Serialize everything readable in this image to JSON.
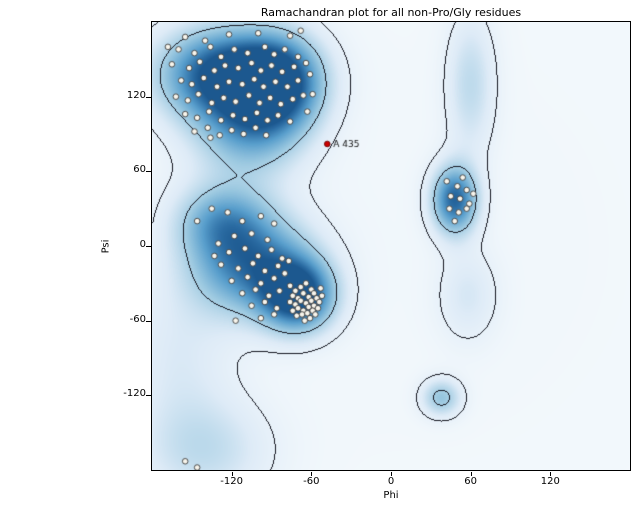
{
  "chart_data": {
    "type": "scatter",
    "title": "Ramachandran plot for all non-Pro/Gly residues",
    "xlabel": "Phi",
    "ylabel": "Psi",
    "xlim": [
      -180,
      180
    ],
    "ylim": [
      -180,
      180
    ],
    "grid": false,
    "legend": "none",
    "point_style": {
      "fill": "#f8f5ec",
      "stroke": "#3c3c3c",
      "radius": 2.8
    },
    "annotated_point": {
      "label": "A 435",
      "phi": -48,
      "psi": 82,
      "fill": "#cc0000",
      "stroke": "#6d0000"
    },
    "contour_levels": [
      0.11,
      0.4
    ],
    "contour_color": [
      22,
      24,
      34
    ],
    "colormap": [
      [
        0.0,
        244,
        249,
        252
      ],
      [
        0.2,
        222,
        235,
        247
      ],
      [
        0.45,
        158,
        202,
        225
      ],
      [
        0.7,
        88,
        158,
        204
      ],
      [
        0.9,
        43,
        108,
        163
      ],
      [
        1.0,
        28,
        88,
        143
      ]
    ],
    "density_blobs": [
      [
        -128,
        138,
        33,
        26,
        1.0
      ],
      [
        -85,
        132,
        24,
        26,
        0.95
      ],
      [
        -105,
        95,
        28,
        26,
        0.45
      ],
      [
        -118,
        58,
        33,
        38,
        0.12
      ],
      [
        -70,
        -40,
        19,
        20,
        1.0
      ],
      [
        -105,
        -15,
        32,
        28,
        0.8
      ],
      [
        -128,
        20,
        24,
        20,
        0.45
      ],
      [
        48,
        37,
        12,
        19,
        0.9
      ],
      [
        60,
        130,
        13,
        40,
        0.3
      ],
      [
        58,
        -40,
        16,
        26,
        0.2
      ],
      [
        38,
        -122,
        10.5,
        10.5,
        0.45
      ],
      [
        -140,
        -165,
        35,
        30,
        0.28
      ],
      [
        -160,
        -90,
        30,
        45,
        0.18
      ],
      [
        0,
        0,
        200,
        200,
        0.03
      ]
    ],
    "points": [
      [
        -155,
        168
      ],
      [
        -140,
        165
      ],
      [
        -122,
        170
      ],
      [
        -100,
        171
      ],
      [
        -76,
        169
      ],
      [
        -68,
        173
      ],
      [
        -168,
        160
      ],
      [
        -160,
        158
      ],
      [
        -148,
        155
      ],
      [
        -136,
        160
      ],
      [
        -128,
        152
      ],
      [
        -118,
        158
      ],
      [
        -108,
        155
      ],
      [
        -95,
        160
      ],
      [
        -88,
        154
      ],
      [
        -80,
        158
      ],
      [
        -70,
        152
      ],
      [
        -165,
        146
      ],
      [
        -152,
        143
      ],
      [
        -144,
        148
      ],
      [
        -133,
        141
      ],
      [
        -125,
        145
      ],
      [
        -115,
        143
      ],
      [
        -105,
        147
      ],
      [
        -98,
        141
      ],
      [
        -90,
        145
      ],
      [
        -82,
        140
      ],
      [
        -73,
        144
      ],
      [
        -64,
        147
      ],
      [
        -158,
        133
      ],
      [
        -150,
        130
      ],
      [
        -141,
        135
      ],
      [
        -131,
        128
      ],
      [
        -122,
        132
      ],
      [
        -112,
        130
      ],
      [
        -103,
        134
      ],
      [
        -96,
        128
      ],
      [
        -87,
        132
      ],
      [
        -78,
        128
      ],
      [
        -70,
        133
      ],
      [
        -61,
        138
      ],
      [
        -162,
        120
      ],
      [
        -153,
        117
      ],
      [
        -145,
        122
      ],
      [
        -135,
        115
      ],
      [
        -126,
        119
      ],
      [
        -117,
        116
      ],
      [
        -107,
        121
      ],
      [
        -99,
        115
      ],
      [
        -91,
        119
      ],
      [
        -83,
        114
      ],
      [
        -74,
        118
      ],
      [
        -66,
        121
      ],
      [
        -59,
        122
      ],
      [
        -155,
        106
      ],
      [
        -146,
        103
      ],
      [
        -137,
        108
      ],
      [
        -128,
        101
      ],
      [
        -119,
        105
      ],
      [
        -110,
        102
      ],
      [
        -101,
        107
      ],
      [
        -93,
        101
      ],
      [
        -85,
        105
      ],
      [
        -76,
        100
      ],
      [
        -63,
        108
      ],
      [
        -148,
        92
      ],
      [
        -138,
        95
      ],
      [
        -129,
        89
      ],
      [
        -120,
        93
      ],
      [
        -111,
        90
      ],
      [
        -102,
        95
      ],
      [
        -94,
        89
      ],
      [
        -136,
        87
      ],
      [
        -123,
        27
      ],
      [
        -112,
        20
      ],
      [
        -98,
        24
      ],
      [
        -88,
        18
      ],
      [
        -105,
        10
      ],
      [
        -93,
        5
      ],
      [
        -118,
        8
      ],
      [
        -130,
        2
      ],
      [
        -146,
        20
      ],
      [
        -135,
        30
      ],
      [
        -122,
        -5
      ],
      [
        -110,
        -2
      ],
      [
        -100,
        -8
      ],
      [
        -90,
        -3
      ],
      [
        -82,
        -10
      ],
      [
        -133,
        -8
      ],
      [
        -128,
        -15
      ],
      [
        -115,
        -18
      ],
      [
        -104,
        -14
      ],
      [
        -95,
        -20
      ],
      [
        -85,
        -16
      ],
      [
        -77,
        -12
      ],
      [
        -120,
        -28
      ],
      [
        -108,
        -25
      ],
      [
        -98,
        -30
      ],
      [
        -88,
        -26
      ],
      [
        -80,
        -22
      ],
      [
        -112,
        -38
      ],
      [
        -102,
        -35
      ],
      [
        -92,
        -40
      ],
      [
        -84,
        -36
      ],
      [
        -105,
        -48
      ],
      [
        -95,
        -45
      ],
      [
        -86,
        -50
      ],
      [
        -117,
        -60
      ],
      [
        -98,
        -58
      ],
      [
        -88,
        -55
      ],
      [
        -76,
        -32
      ],
      [
        -72,
        -36
      ],
      [
        -68,
        -33
      ],
      [
        -64,
        -30
      ],
      [
        -60,
        -35
      ],
      [
        -74,
        -40
      ],
      [
        -70,
        -42
      ],
      [
        -66,
        -38
      ],
      [
        -62,
        -41
      ],
      [
        -58,
        -38
      ],
      [
        -76,
        -45
      ],
      [
        -72,
        -47
      ],
      [
        -68,
        -44
      ],
      [
        -64,
        -46
      ],
      [
        -60,
        -44
      ],
      [
        -56,
        -42
      ],
      [
        -74,
        -52
      ],
      [
        -70,
        -50
      ],
      [
        -66,
        -52
      ],
      [
        -62,
        -49
      ],
      [
        -58,
        -48
      ],
      [
        -54,
        -45
      ],
      [
        -71,
        -56
      ],
      [
        -67,
        -55
      ],
      [
        -63,
        -54
      ],
      [
        -59,
        -52
      ],
      [
        -55,
        -50
      ],
      [
        -65,
        -60
      ],
      [
        -61,
        -58
      ],
      [
        -57,
        -55
      ],
      [
        -52,
        -40
      ],
      [
        -53,
        -34
      ],
      [
        42,
        52
      ],
      [
        50,
        48
      ],
      [
        57,
        45
      ],
      [
        45,
        40
      ],
      [
        52,
        38
      ],
      [
        59,
        34
      ],
      [
        44,
        30
      ],
      [
        51,
        27
      ],
      [
        57,
        30
      ],
      [
        48,
        20
      ],
      [
        54,
        55
      ],
      [
        62,
        42
      ],
      [
        -155,
        -173
      ],
      [
        -146,
        -178
      ]
    ]
  },
  "axes": {
    "xlim": [
      -180,
      180
    ],
    "ylim": [
      -180,
      180
    ],
    "xticks": [
      -120,
      -60,
      0,
      60,
      120
    ],
    "yticks": [
      120,
      60,
      0,
      -60,
      -120
    ]
  }
}
